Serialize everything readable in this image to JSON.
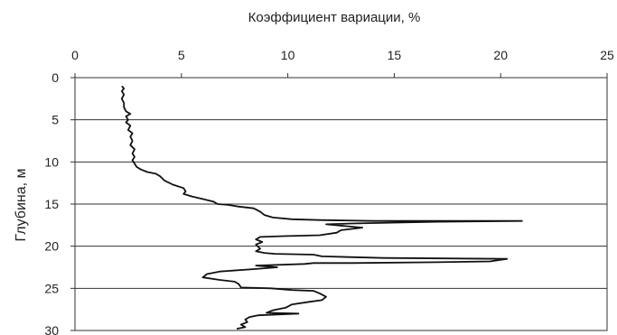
{
  "chart_data": {
    "type": "line",
    "title": "Коэффициент вариации, %",
    "xlabel": "Коэффициент вариации, %",
    "ylabel": "Глубина, м",
    "xlim": [
      0,
      25
    ],
    "ylim": [
      0,
      30
    ],
    "y_inverted": true,
    "x_axis_position": "top",
    "xticks": [
      0,
      5,
      10,
      15,
      20,
      25
    ],
    "yticks": [
      0,
      5,
      10,
      15,
      20,
      25,
      30
    ],
    "grid": "horizontal",
    "series": [
      {
        "color": "#111111",
        "points": [
          [
            2.2,
            1.0
          ],
          [
            2.3,
            1.3
          ],
          [
            2.2,
            1.6
          ],
          [
            2.3,
            2.0
          ],
          [
            2.2,
            2.5
          ],
          [
            2.3,
            3.0
          ],
          [
            2.3,
            3.5
          ],
          [
            2.4,
            4.0
          ],
          [
            2.6,
            4.3
          ],
          [
            2.4,
            4.6
          ],
          [
            2.5,
            5.0
          ],
          [
            2.4,
            5.3
          ],
          [
            2.6,
            5.7
          ],
          [
            2.5,
            6.2
          ],
          [
            2.7,
            6.6
          ],
          [
            2.6,
            7.0
          ],
          [
            2.7,
            7.5
          ],
          [
            2.6,
            8.0
          ],
          [
            2.8,
            8.5
          ],
          [
            2.7,
            9.0
          ],
          [
            2.8,
            9.4
          ],
          [
            2.7,
            9.8
          ],
          [
            2.8,
            10.2
          ],
          [
            2.9,
            10.6
          ],
          [
            3.1,
            10.9
          ],
          [
            3.4,
            11.2
          ],
          [
            3.8,
            11.4
          ],
          [
            4.0,
            11.7
          ],
          [
            4.2,
            12.2
          ],
          [
            4.6,
            12.7
          ],
          [
            5.1,
            13.1
          ],
          [
            5.2,
            13.5
          ],
          [
            5.1,
            13.8
          ],
          [
            5.5,
            14.1
          ],
          [
            6.0,
            14.4
          ],
          [
            6.5,
            14.7
          ],
          [
            6.7,
            15.0
          ],
          [
            7.2,
            15.1
          ],
          [
            7.7,
            15.3
          ],
          [
            8.4,
            15.5
          ],
          [
            8.7,
            15.9
          ],
          [
            8.9,
            16.3
          ],
          [
            9.3,
            16.6
          ],
          [
            10.2,
            16.8
          ],
          [
            11.5,
            16.9
          ],
          [
            14.0,
            17.0
          ],
          [
            21.0,
            17.0
          ],
          [
            17.0,
            17.1
          ],
          [
            13.0,
            17.3
          ],
          [
            11.8,
            17.4
          ],
          [
            13.5,
            17.8
          ],
          [
            12.5,
            18.1
          ],
          [
            12.3,
            18.4
          ],
          [
            11.5,
            18.7
          ],
          [
            9.8,
            18.8
          ],
          [
            8.7,
            18.9
          ],
          [
            8.5,
            19.2
          ],
          [
            8.8,
            19.5
          ],
          [
            8.5,
            19.8
          ],
          [
            8.7,
            20.3
          ],
          [
            8.5,
            20.6
          ],
          [
            8.9,
            20.8
          ],
          [
            9.4,
            20.9
          ],
          [
            11.2,
            21.0
          ],
          [
            11.6,
            21.2
          ],
          [
            14.5,
            21.4
          ],
          [
            20.3,
            21.5
          ],
          [
            19.5,
            21.8
          ],
          [
            17.0,
            21.9
          ],
          [
            13.0,
            22.0
          ],
          [
            11.2,
            22.0
          ],
          [
            10.8,
            22.1
          ],
          [
            8.5,
            22.3
          ],
          [
            9.5,
            22.5
          ],
          [
            8.5,
            22.7
          ],
          [
            6.8,
            23.0
          ],
          [
            6.2,
            23.3
          ],
          [
            6.0,
            23.7
          ],
          [
            6.8,
            24.0
          ],
          [
            7.5,
            24.2
          ],
          [
            7.7,
            24.5
          ],
          [
            7.8,
            24.9
          ],
          [
            9.2,
            25.0
          ],
          [
            10.2,
            25.2
          ],
          [
            11.2,
            25.3
          ],
          [
            11.5,
            25.6
          ],
          [
            11.8,
            26.0
          ],
          [
            11.6,
            26.4
          ],
          [
            11.0,
            26.6
          ],
          [
            10.2,
            26.9
          ],
          [
            9.9,
            27.3
          ],
          [
            9.3,
            27.6
          ],
          [
            9.0,
            27.9
          ],
          [
            10.5,
            28.0
          ],
          [
            8.6,
            28.2
          ],
          [
            8.2,
            28.4
          ],
          [
            8.0,
            28.7
          ],
          [
            8.1,
            29.0
          ],
          [
            7.8,
            29.3
          ],
          [
            8.0,
            29.6
          ],
          [
            7.6,
            29.8
          ]
        ]
      }
    ]
  }
}
